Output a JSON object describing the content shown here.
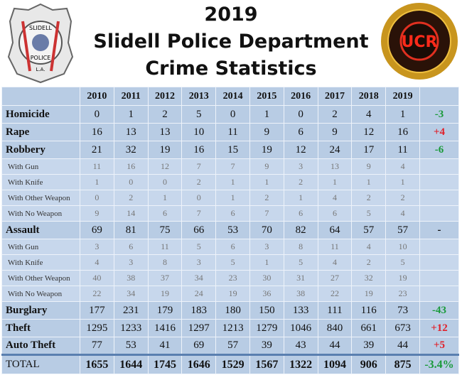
{
  "header": {
    "title_lines": [
      "2019",
      "Slidell Police Department",
      "Crime Statistics"
    ],
    "left_logo": {
      "lines": [
        "SLIDELL",
        "POLICE",
        "L.A."
      ]
    },
    "right_logo": {
      "text": "UCR"
    }
  },
  "table": {
    "columns": [
      "2010",
      "2011",
      "2012",
      "2013",
      "2014",
      "2015",
      "2016",
      "2017",
      "2018",
      "2019"
    ],
    "rows": [
      {
        "label": "Homicide",
        "values": [
          0,
          1,
          2,
          5,
          0,
          1,
          0,
          2,
          4,
          1
        ],
        "change": "-3",
        "change_color": "#1a9a3a"
      },
      {
        "label": "Rape",
        "values": [
          16,
          13,
          13,
          10,
          11,
          9,
          6,
          9,
          12,
          16
        ],
        "change": "+4",
        "change_color": "#e0202a"
      },
      {
        "label": "Robbery",
        "values": [
          21,
          32,
          19,
          16,
          15,
          19,
          12,
          24,
          17,
          11
        ],
        "change": "-6",
        "change_color": "#1a9a3a"
      },
      {
        "label": "With Gun",
        "values": [
          11,
          16,
          12,
          7,
          7,
          9,
          3,
          13,
          9,
          4
        ],
        "sub": true
      },
      {
        "label": "With Knife",
        "values": [
          1,
          0,
          0,
          2,
          1,
          1,
          2,
          1,
          1,
          1
        ],
        "sub": true
      },
      {
        "label": "With Other Weapon",
        "values": [
          0,
          2,
          1,
          0,
          1,
          2,
          1,
          4,
          2,
          2
        ],
        "sub": true
      },
      {
        "label": "With No Weapon",
        "values": [
          9,
          14,
          6,
          7,
          6,
          7,
          6,
          6,
          5,
          4
        ],
        "sub": true
      },
      {
        "label": "Assault",
        "values": [
          69,
          81,
          75,
          66,
          53,
          70,
          82,
          64,
          57,
          57
        ],
        "change": "-",
        "change_color": "#111111"
      },
      {
        "label": "With Gun",
        "values": [
          3,
          6,
          11,
          5,
          6,
          3,
          8,
          11,
          4,
          10
        ],
        "sub": true
      },
      {
        "label": "With Knife",
        "values": [
          4,
          3,
          8,
          3,
          5,
          1,
          5,
          4,
          2,
          5
        ],
        "sub": true
      },
      {
        "label": "With Other Weapon",
        "values": [
          40,
          38,
          37,
          34,
          23,
          30,
          31,
          27,
          32,
          19
        ],
        "sub": true
      },
      {
        "label": "With No Weapon",
        "values": [
          22,
          34,
          19,
          24,
          19,
          36,
          38,
          22,
          19,
          23
        ],
        "sub": true
      },
      {
        "label": "Burglary",
        "values": [
          177,
          231,
          179,
          183,
          180,
          150,
          133,
          111,
          116,
          73
        ],
        "change": "-43",
        "change_color": "#1a9a3a"
      },
      {
        "label": "Theft",
        "values": [
          1295,
          1233,
          1416,
          1297,
          1213,
          1279,
          1046,
          840,
          661,
          673
        ],
        "change": "+12",
        "change_color": "#e0202a"
      },
      {
        "label": "Auto Theft",
        "values": [
          77,
          53,
          41,
          69,
          57,
          39,
          43,
          44,
          39,
          44
        ],
        "change": "+5",
        "change_color": "#e0202a"
      }
    ],
    "total": {
      "label": "TOTAL",
      "values": [
        1655,
        1644,
        1745,
        1646,
        1529,
        1567,
        1322,
        1094,
        906,
        875
      ],
      "change": "-3.4%",
      "change_color": "#1a9a3a"
    }
  }
}
